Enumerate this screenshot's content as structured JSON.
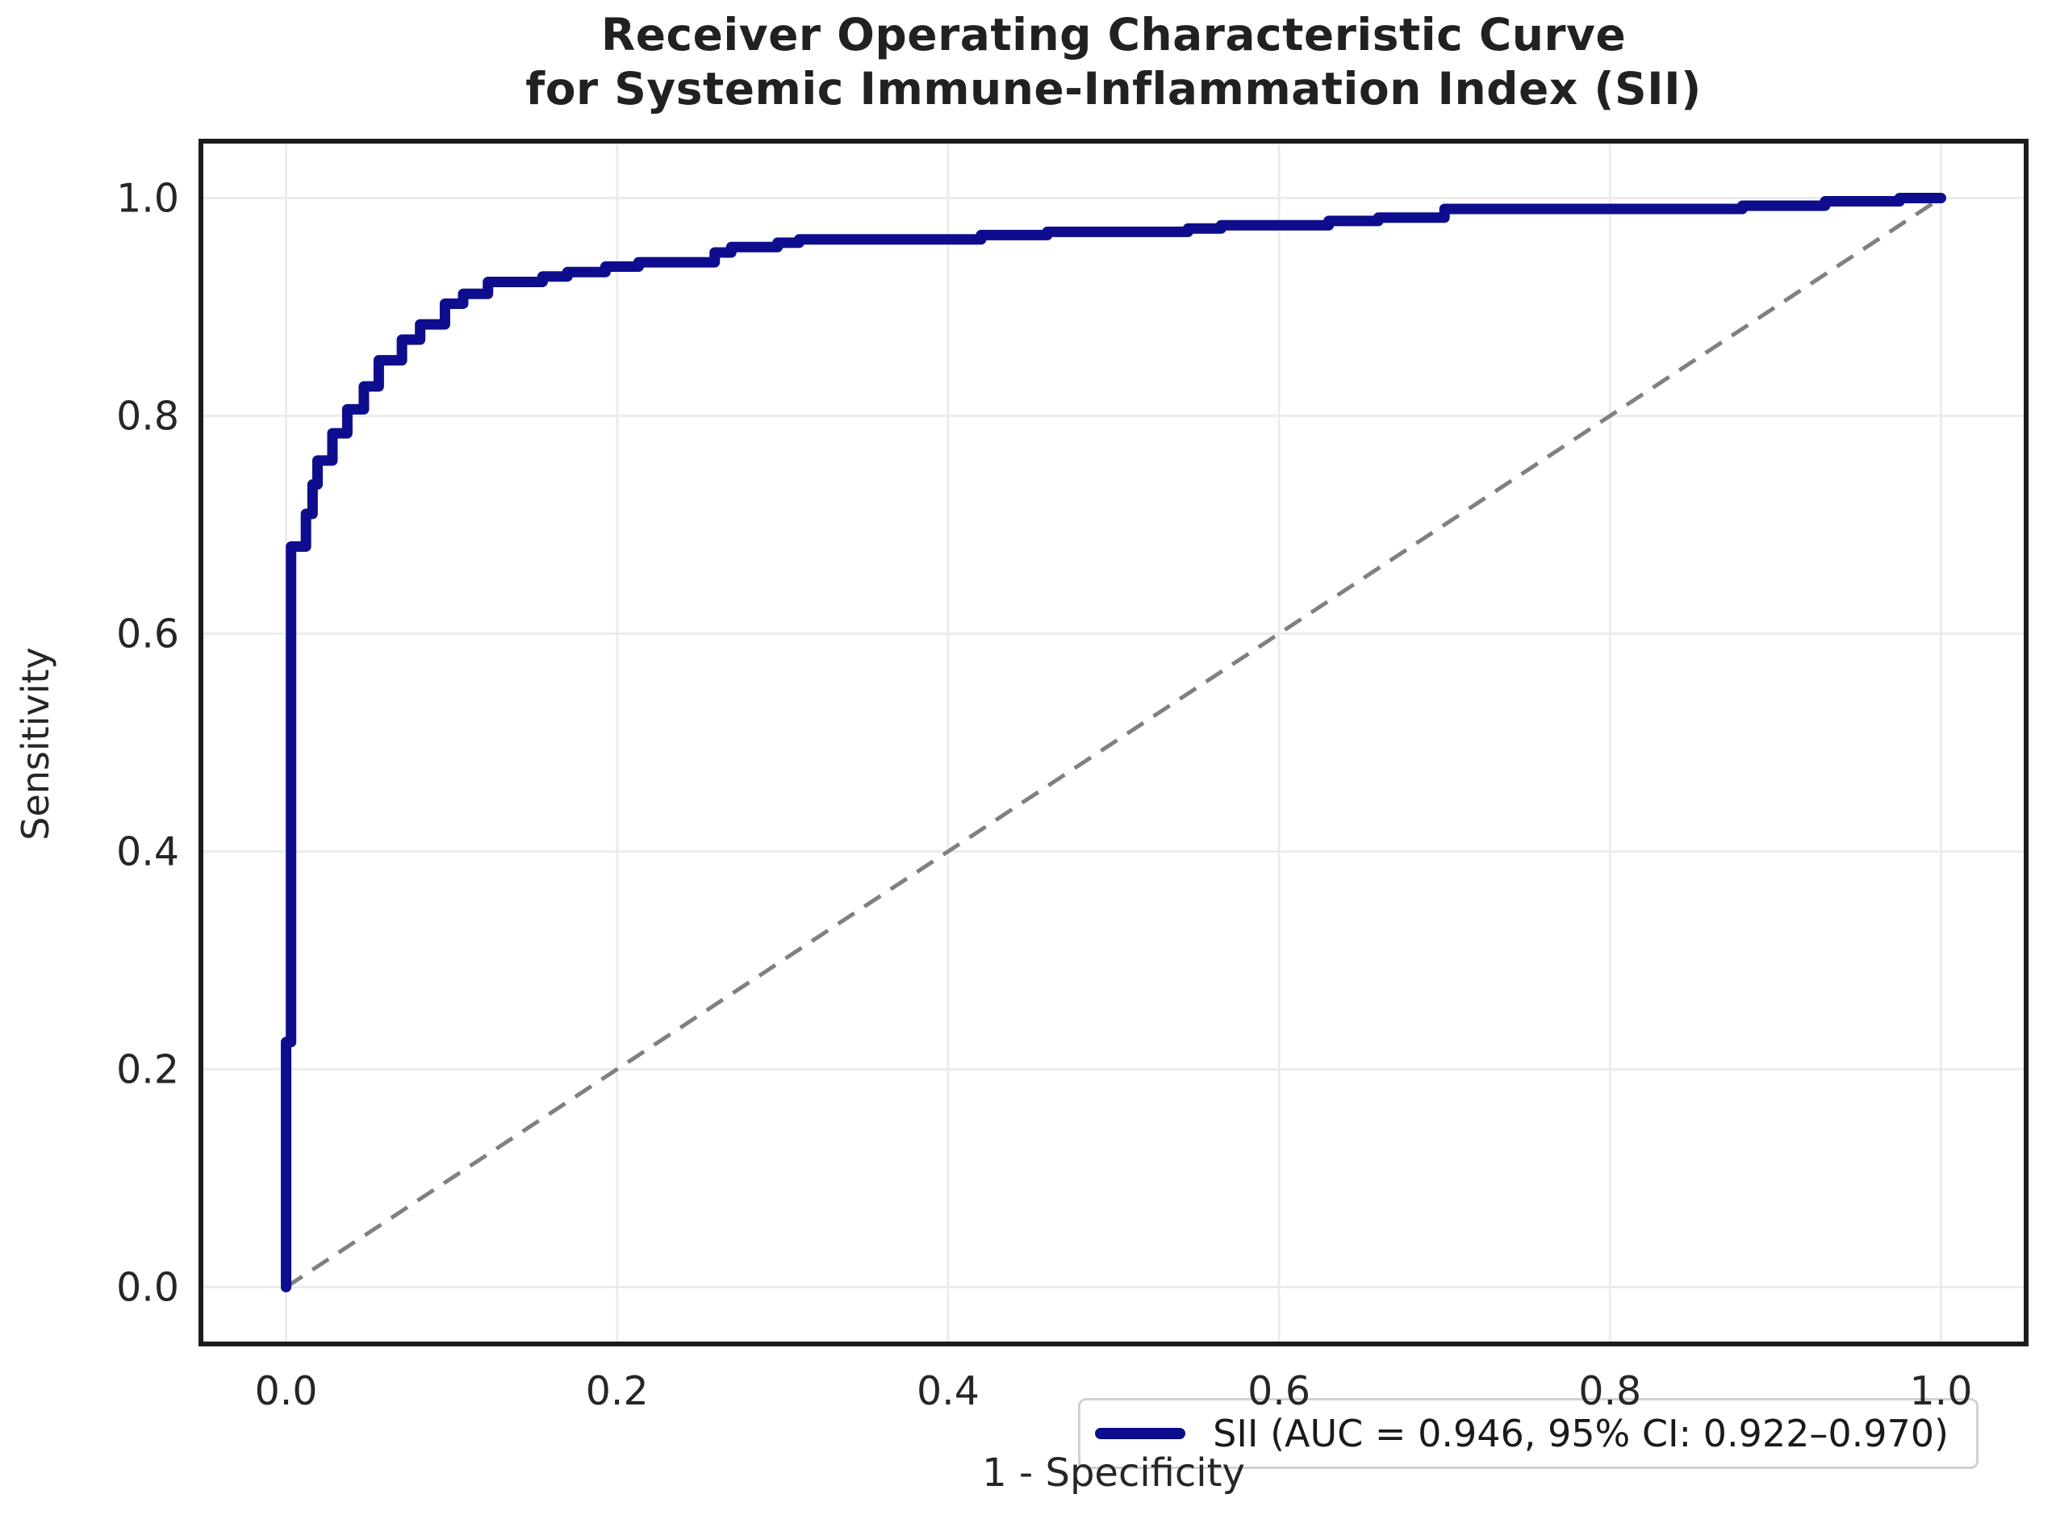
{
  "title": {
    "line1": "Receiver Operating Characteristic Curve",
    "line2": "for Systemic Immune-Inflammation Index (SII)"
  },
  "axes": {
    "x_label": "1 - Specificity",
    "y_label": "Sensitivity",
    "x_ticks": [
      "0.0",
      "0.2",
      "0.4",
      "0.6",
      "0.8",
      "1.0"
    ],
    "y_ticks": [
      "0.0",
      "0.2",
      "0.4",
      "0.6",
      "0.8",
      "1.0"
    ]
  },
  "legend": {
    "label": "SII (AUC = 0.946, 95% CI: 0.922–0.970)"
  },
  "colors": {
    "roc_curve": "#0d0d8d",
    "reference_line": "#808080",
    "gridline": "#ececec",
    "frame": "#1c1c1c",
    "text": "#262626"
  },
  "chart_data": {
    "type": "line",
    "subtype": "roc_curve_step",
    "title": "Receiver Operating Characteristic Curve for Systemic Immune-Inflammation Index (SII)",
    "xlabel": "1 - Specificity",
    "ylabel": "Sensitivity",
    "xlim": [
      -0.05,
      1.05
    ],
    "ylim": [
      -0.05,
      1.05
    ],
    "grid": true,
    "legend_position": "lower right",
    "auc": 0.946,
    "ci_95": [
      0.922,
      0.97
    ],
    "x_tick_values": [
      0,
      0.2,
      0.4,
      0.6,
      0.8,
      1.0
    ],
    "y_tick_values": [
      0,
      0.2,
      0.4,
      0.6,
      0.8,
      1.0
    ],
    "reference_line": {
      "from": [
        0,
        0
      ],
      "to": [
        1,
        1
      ],
      "style": "dashed",
      "color": "#808080"
    },
    "series": [
      {
        "name": "SII (AUC = 0.946, 95% CI: 0.922–0.970)",
        "color": "#0d0d8d",
        "points": [
          [
            0,
            0
          ],
          [
            0,
            0.225
          ],
          [
            0.003,
            0.225
          ],
          [
            0.003,
            0.68
          ],
          [
            0.012,
            0.68
          ],
          [
            0.012,
            0.71
          ],
          [
            0.016,
            0.71
          ],
          [
            0.016,
            0.737
          ],
          [
            0.019,
            0.737
          ],
          [
            0.019,
            0.759
          ],
          [
            0.028,
            0.759
          ],
          [
            0.028,
            0.784
          ],
          [
            0.037,
            0.784
          ],
          [
            0.037,
            0.806
          ],
          [
            0.047,
            0.806
          ],
          [
            0.047,
            0.827
          ],
          [
            0.056,
            0.827
          ],
          [
            0.056,
            0.851
          ],
          [
            0.07,
            0.851
          ],
          [
            0.07,
            0.87
          ],
          [
            0.081,
            0.87
          ],
          [
            0.081,
            0.884
          ],
          [
            0.096,
            0.884
          ],
          [
            0.096,
            0.903
          ],
          [
            0.107,
            0.903
          ],
          [
            0.107,
            0.912
          ],
          [
            0.122,
            0.912
          ],
          [
            0.122,
            0.923
          ],
          [
            0.155,
            0.923
          ],
          [
            0.155,
            0.928
          ],
          [
            0.17,
            0.928
          ],
          [
            0.17,
            0.932
          ],
          [
            0.193,
            0.932
          ],
          [
            0.193,
            0.937
          ],
          [
            0.213,
            0.937
          ],
          [
            0.213,
            0.941
          ],
          [
            0.259,
            0.941
          ],
          [
            0.259,
            0.95
          ],
          [
            0.269,
            0.95
          ],
          [
            0.269,
            0.955
          ],
          [
            0.297,
            0.955
          ],
          [
            0.297,
            0.959
          ],
          [
            0.31,
            0.959
          ],
          [
            0.31,
            0.962
          ],
          [
            0.42,
            0.962
          ],
          [
            0.42,
            0.966
          ],
          [
            0.46,
            0.966
          ],
          [
            0.46,
            0.969
          ],
          [
            0.545,
            0.969
          ],
          [
            0.545,
            0.972
          ],
          [
            0.565,
            0.972
          ],
          [
            0.565,
            0.975
          ],
          [
            0.63,
            0.975
          ],
          [
            0.63,
            0.979
          ],
          [
            0.66,
            0.979
          ],
          [
            0.66,
            0.982
          ],
          [
            0.7,
            0.982
          ],
          [
            0.7,
            0.99
          ],
          [
            0.88,
            0.99
          ],
          [
            0.88,
            0.993
          ],
          [
            0.93,
            0.993
          ],
          [
            0.93,
            0.997
          ],
          [
            0.975,
            0.997
          ],
          [
            0.975,
            1.0
          ],
          [
            1.0,
            1.0
          ]
        ]
      }
    ]
  }
}
